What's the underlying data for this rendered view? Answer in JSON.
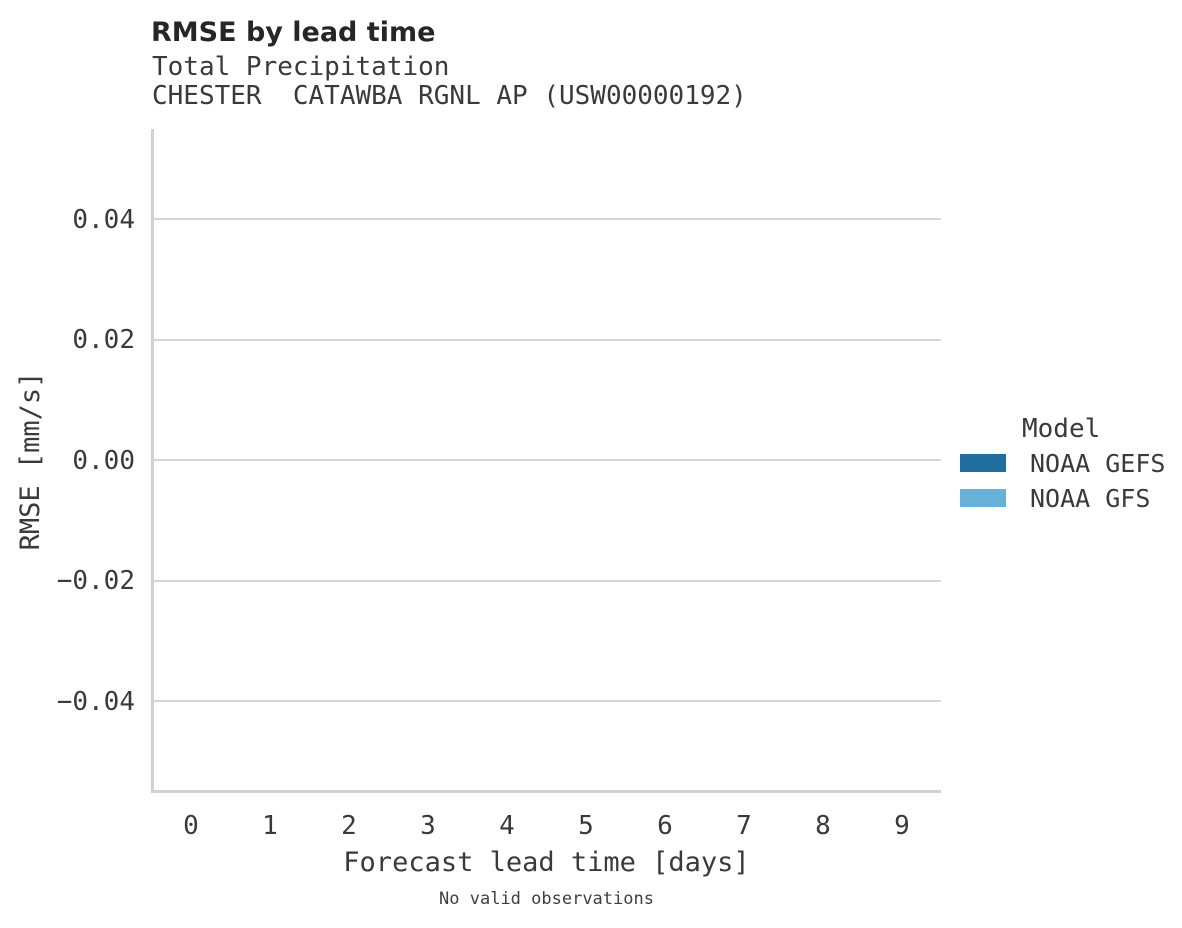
{
  "chart_data": {
    "type": "bar",
    "title": "RMSE by lead time",
    "subtitle": "Total Precipitation",
    "station": "CHESTER  CATAWBA RGNL AP (USW00000192)",
    "xlabel": "Forecast lead time [days]",
    "ylabel": "RMSE [mm/s]",
    "categories": [
      "0",
      "1",
      "2",
      "3",
      "4",
      "5",
      "6",
      "7",
      "8",
      "9"
    ],
    "ytick_labels": [
      "0.04",
      "0.02",
      "0.00",
      "−0.02",
      "−0.04"
    ],
    "ytick_values": [
      0.04,
      0.02,
      0.0,
      -0.02,
      -0.04
    ],
    "ylim": [
      -0.055,
      0.055
    ],
    "grid": true,
    "legend": {
      "title": "Model",
      "position": "right",
      "entries": [
        {
          "label": "NOAA GEFS",
          "color": "#206e9e"
        },
        {
          "label": "NOAA GFS",
          "color": "#69b1d8"
        }
      ]
    },
    "series": [
      {
        "name": "NOAA GEFS",
        "values": []
      },
      {
        "name": "NOAA GFS",
        "values": []
      }
    ],
    "note": "No valid observations",
    "empty": true
  },
  "colors": {
    "grid": "#d6d6d6",
    "axis": "#d2d2d2",
    "text": "#3a3a3a",
    "title": "#262626",
    "gefs_blue": "#206e9e",
    "gfs_blue": "#69b1d8"
  }
}
